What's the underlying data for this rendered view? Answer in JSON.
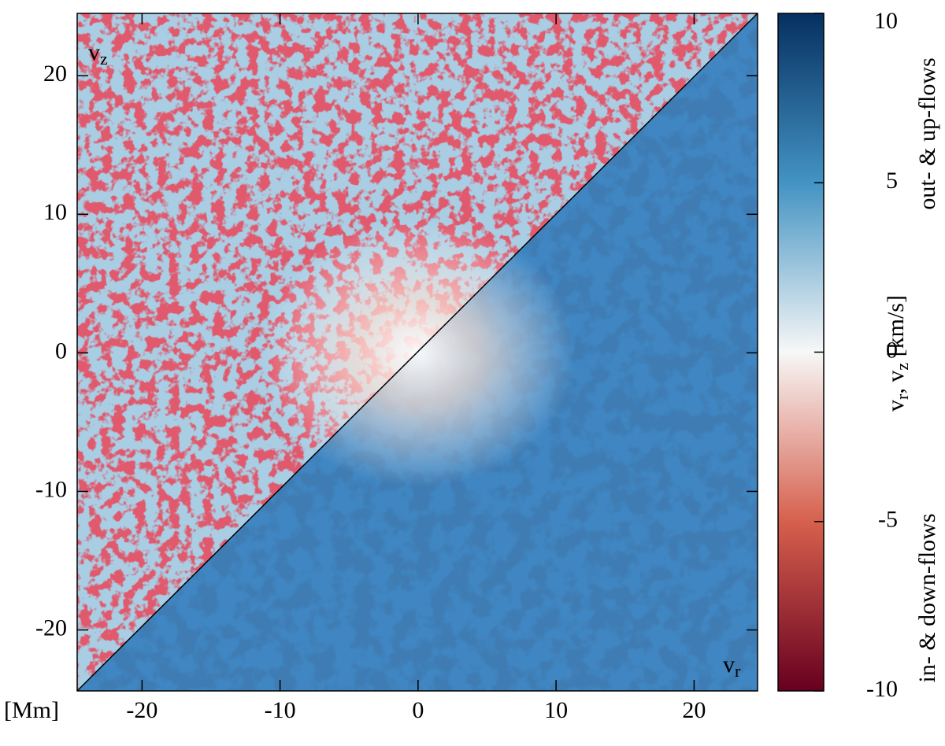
{
  "chart_data": {
    "type": "heatmap",
    "xlabel": "[Mm]",
    "xlim": [
      -24.7,
      24.6
    ],
    "ylim": [
      -24.4,
      24.5
    ],
    "xticks": [
      -20,
      -10,
      0,
      10,
      20
    ],
    "yticks": [
      -20,
      -10,
      0,
      10,
      20
    ],
    "panel_labels": [
      {
        "base": "v",
        "sub": "z"
      },
      {
        "base": "v",
        "sub": "r"
      }
    ],
    "colorbar": {
      "clim": [
        -10,
        10
      ],
      "ticks": [
        -10,
        -5,
        0,
        5,
        10
      ],
      "colors": [
        "#67001f",
        "#d6604d",
        "#f7f7f7",
        "#4393c3",
        "#053061"
      ],
      "label": [
        {
          "text": "v"
        },
        {
          "text": "r",
          "sub": true
        },
        {
          "text": ", v"
        },
        {
          "text": "z",
          "sub": true
        },
        {
          "text": " [km/s]"
        }
      ],
      "upper_label": {
        "text": "out- & up-flows",
        "color": "#0000cc"
      },
      "lower_label": {
        "text": "in- & down-flows",
        "color": "#cc0000"
      }
    }
  }
}
